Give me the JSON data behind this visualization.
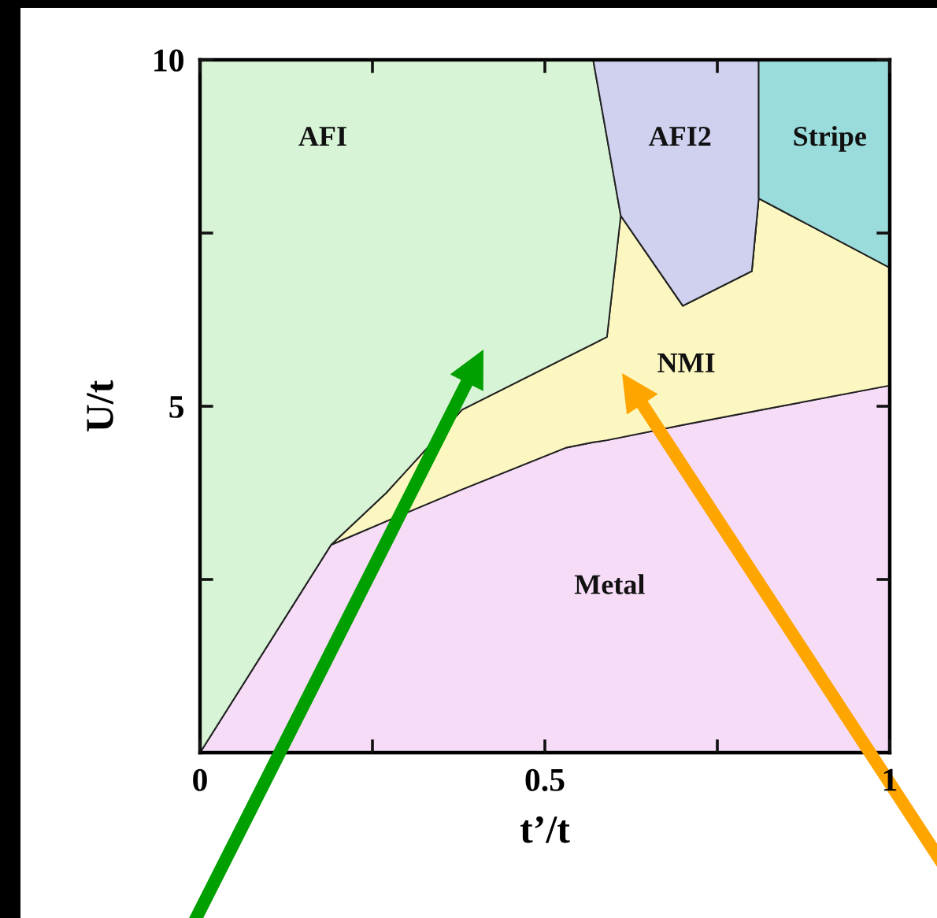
{
  "chart_data": {
    "type": "area",
    "stacked": true,
    "xlabel": "t’/t",
    "ylabel": "U/t",
    "x": [
      0,
      0.19,
      0.27,
      0.38,
      0.53,
      0.57,
      0.59,
      0.61,
      0.7,
      0.8,
      0.81,
      0.81,
      1.0
    ],
    "series": [
      {
        "name": "Metal",
        "color": "#f7dcf8",
        "values": [
          0,
          3.0,
          3.34,
          3.8,
          4.4,
          4.48,
          4.51,
          4.55,
          4.73,
          4.92,
          4.94,
          4.94,
          5.3
        ]
      },
      {
        "name": "NMI",
        "color": "#fcf7c0",
        "values": [
          0,
          0,
          0.41,
          1.15,
          1.3,
          1.42,
          1.49,
          3.2,
          1.72,
          2.03,
          3.06,
          3.06,
          1.7
        ]
      },
      {
        "name": "AFI",
        "color": "#d8f4d6",
        "values": [
          10,
          7.0,
          6.25,
          5.05,
          4.3,
          4.1,
          2.88,
          0,
          0,
          0,
          0,
          0,
          0
        ]
      },
      {
        "name": "AFI2",
        "color": "#d0d0ef",
        "values": [
          0,
          0,
          0,
          0,
          0,
          0,
          1.12,
          2.25,
          3.55,
          3.05,
          2.0,
          0,
          0
        ]
      },
      {
        "name": "Stripe",
        "color": "#9adcdc",
        "values": [
          0,
          0,
          0,
          0,
          0,
          0,
          0,
          0,
          0,
          0,
          0,
          2.0,
          3.0
        ]
      }
    ],
    "xlim": [
      0,
      1
    ],
    "ylim": [
      0,
      10
    ],
    "xticks": [
      0,
      {
        "value": 0.25,
        "label": null
      },
      0.5,
      {
        "value": 0.75,
        "label": null
      },
      1
    ],
    "yticks": [
      {
        "value": 2.5,
        "label": null
      },
      5,
      {
        "value": 7.5,
        "label": null
      },
      10
    ]
  }
}
